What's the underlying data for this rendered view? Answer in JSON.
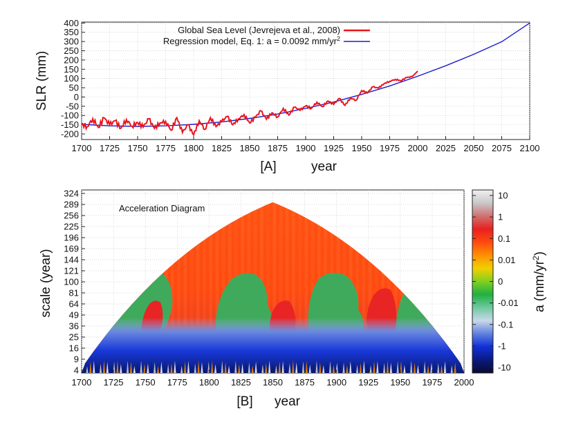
{
  "chart_data": [
    {
      "type": "line",
      "panel_label": "[A]",
      "xlabel": "year",
      "ylabel": "SLR (mm)",
      "xlim": [
        1700,
        2100
      ],
      "ylim": [
        -230,
        405
      ],
      "xticks": [
        1700,
        1725,
        1750,
        1775,
        1800,
        1825,
        1850,
        1875,
        1900,
        1925,
        1950,
        1975,
        2000,
        2025,
        2050,
        2075,
        2100
      ],
      "yticks": [
        400,
        350,
        300,
        250,
        200,
        150,
        100,
        50,
        0,
        -50,
        -100,
        -150,
        -200
      ],
      "grid": true,
      "legend_position": "top-center",
      "series": [
        {
          "name": "Global Sea Level (Jevrejeva et al., 2008)",
          "color": "#e8141c",
          "x": [
            1700,
            1705,
            1710,
            1715,
            1720,
            1725,
            1730,
            1735,
            1740,
            1745,
            1750,
            1755,
            1760,
            1765,
            1770,
            1775,
            1780,
            1785,
            1790,
            1795,
            1800,
            1805,
            1810,
            1815,
            1820,
            1825,
            1830,
            1835,
            1840,
            1845,
            1850,
            1855,
            1860,
            1865,
            1870,
            1875,
            1880,
            1885,
            1890,
            1895,
            1900,
            1905,
            1910,
            1915,
            1920,
            1925,
            1930,
            1935,
            1940,
            1945,
            1950,
            1955,
            1960,
            1965,
            1970,
            1975,
            1980,
            1985,
            1990,
            1995,
            2000
          ],
          "values": [
            -148,
            -160,
            -118,
            -165,
            -112,
            -150,
            -128,
            -170,
            -122,
            -158,
            -138,
            -162,
            -118,
            -170,
            -140,
            -132,
            -180,
            -112,
            -192,
            -150,
            -205,
            -128,
            -175,
            -112,
            -160,
            -132,
            -105,
            -150,
            -118,
            -95,
            -140,
            -110,
            -75,
            -120,
            -85,
            -108,
            -62,
            -98,
            -55,
            -72,
            -48,
            -62,
            -28,
            -52,
            -22,
            -40,
            -8,
            -45,
            -5,
            -18,
            35,
            22,
            55,
            48,
            72,
            85,
            95,
            88,
            105,
            110,
            140
          ]
        },
        {
          "name": "Regression model, Eq. 1: a = 0.0092 mm/yr",
          "name_superscript": "2",
          "color": "#1a1ad0",
          "x": [
            1700,
            1725,
            1750,
            1775,
            1800,
            1825,
            1850,
            1875,
            1900,
            1925,
            1950,
            1975,
            2000,
            2025,
            2050,
            2075,
            2100
          ],
          "values": [
            -148,
            -156,
            -159,
            -156,
            -148,
            -135,
            -116,
            -92,
            -62,
            -27,
            14,
            60,
            112,
            169,
            231,
            299,
            400
          ]
        }
      ]
    },
    {
      "type": "heatmap",
      "panel_label": "[B]",
      "title": "Acceleration Diagram",
      "xlabel": "year",
      "ylabel": "scale (year)",
      "xlim": [
        1700,
        2000
      ],
      "xticks": [
        1700,
        1725,
        1750,
        1775,
        1800,
        1825,
        1850,
        1875,
        1900,
        1925,
        1950,
        1975,
        2000
      ],
      "yticks": [
        4,
        9,
        16,
        25,
        36,
        49,
        64,
        81,
        100,
        121,
        144,
        169,
        196,
        225,
        256,
        289,
        324
      ],
      "cone_apex": {
        "year": 1850,
        "scale": 296
      },
      "colorbar": {
        "label": "a (mm/yr",
        "label_superscript": "2",
        "label_suffix": ")",
        "ticks": [
          "10",
          "1",
          "0.1",
          "0.01",
          "0",
          "-0.01",
          "-0.1",
          "-1",
          "-10"
        ],
        "colors": [
          "#f0f0f0",
          "#c8c8c8",
          "#d07070",
          "#e82020",
          "#ff4a10",
          "#ff9000",
          "#f0d000",
          "#80d020",
          "#20b040",
          "#70c8a0",
          "#c8d8e8",
          "#6080e0",
          "#1030d8",
          "#0a1a80",
          "#0a0a30"
        ]
      },
      "regions": [
        {
          "name": "background",
          "value": "0.1",
          "color": "#ff4a12"
        },
        {
          "name": "green-1725",
          "value": "-0.01",
          "color": "#3fa85a",
          "year_center": 1725,
          "scale_top": 110
        },
        {
          "name": "green-1830",
          "value": "-0.01",
          "color": "#3fa85a",
          "year_center": 1830,
          "scale_top": 112
        },
        {
          "name": "green-1895",
          "value": "-0.01",
          "color": "#3fa85a",
          "year_center": 1893,
          "scale_top": 112
        },
        {
          "name": "green-1960",
          "value": "-0.01",
          "color": "#3fa85a",
          "year_center": 1962,
          "scale_top": 95
        },
        {
          "name": "blue-band",
          "value": "-1",
          "color": "#1535d8",
          "scale_range": [
            4,
            30
          ]
        }
      ]
    }
  ]
}
